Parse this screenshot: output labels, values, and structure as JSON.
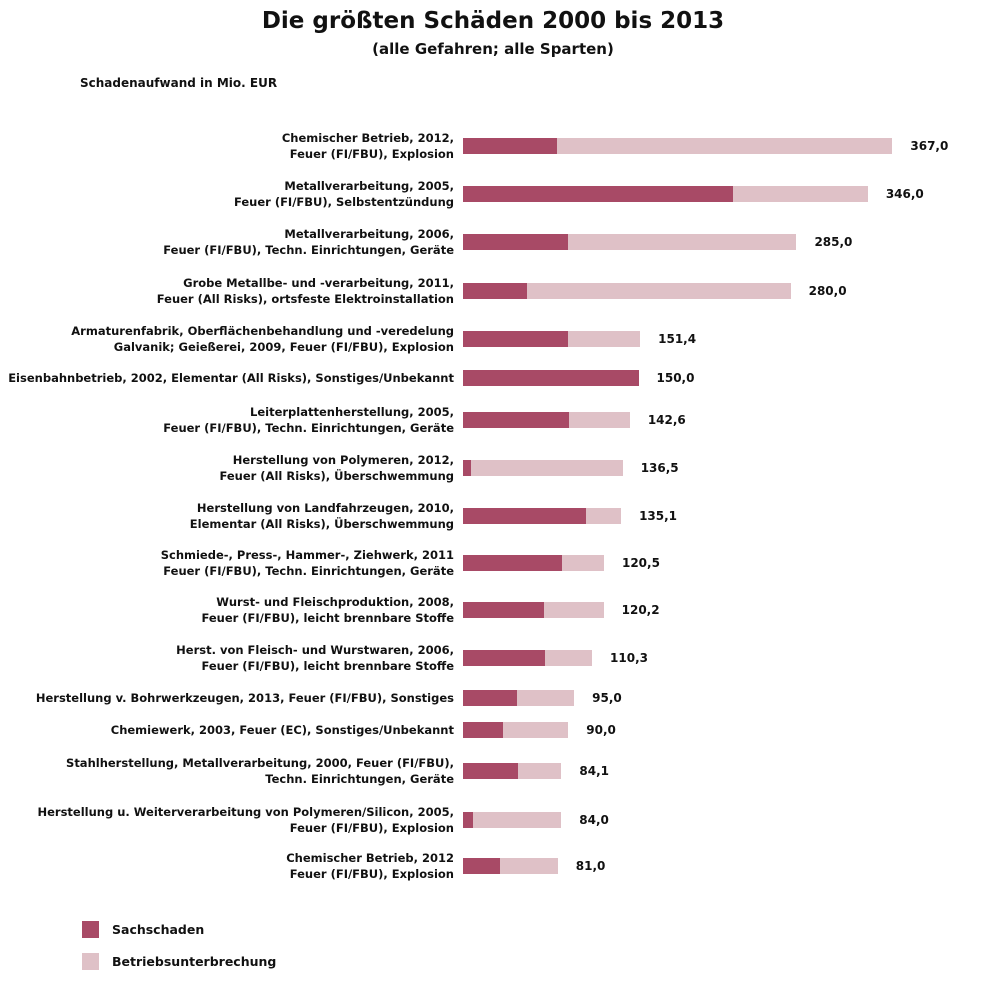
{
  "chart_data": {
    "type": "bar",
    "orientation": "horizontal",
    "stacked": true,
    "title": "Die größten Schäden 2000 bis 2013",
    "subtitle": "(alle Gefahren; alle Sparten)",
    "ylabel": "Schadenaufwand in Mio. EUR",
    "xlim": [
      0,
      370
    ],
    "grid": false,
    "legend_position": "bottom-left",
    "colors": {
      "Sachschaden": "#a84a66",
      "Betriebsunterbrechung": "#dfc1c7"
    },
    "categories": [
      [
        "Chemischer Betrieb, 2012,",
        "Feuer (FI/FBU), Explosion"
      ],
      [
        "Metallverarbeitung, 2005,",
        "Feuer (FI/FBU), Selbstentzündung"
      ],
      [
        "Metallverarbeitung, 2006,",
        "Feuer (FI/FBU), Techn. Einrichtungen, Geräte"
      ],
      [
        "Grobe Metallbe- und -verarbeitung, 2011,",
        "Feuer (All Risks), ortsfeste Elektroinstallation"
      ],
      [
        "Armaturenfabrik, Oberflächenbehandlung und -veredelung",
        "Galvanik; Geießerei, 2009, Feuer (FI/FBU), Explosion"
      ],
      [
        "Eisenbahnbetrieb, 2002, Elementar (All  Risks), Sonstiges/Unbekannt"
      ],
      [
        "Leiterplattenherstellung, 2005,",
        "Feuer (FI/FBU), Techn. Einrichtungen, Geräte"
      ],
      [
        "Herstellung von Polymeren, 2012,",
        "Feuer (All Risks), Überschwemmung"
      ],
      [
        "Herstellung von Landfahrzeugen, 2010,",
        "Elementar (All Risks), Überschwemmung"
      ],
      [
        "Schmiede-, Press-, Hammer-, Ziehwerk, 2011",
        "Feuer (FI/FBU), Techn. Einrichtungen, Geräte"
      ],
      [
        "Wurst- und Fleischproduktion, 2008,",
        "Feuer (FI/FBU), leicht brennbare Stoffe"
      ],
      [
        "Herst. von Fleisch- und Wurstwaren, 2006,",
        "Feuer (FI/FBU), leicht brennbare Stoffe"
      ],
      [
        "Herstellung v. Bohrwerkzeugen, 2013, Feuer (FI/FBU), Sonstiges"
      ],
      [
        "Chemiewerk, 2003, Feuer (EC), Sonstiges/Unbekannt"
      ],
      [
        "Stahlherstellung, Metallverarbeitung, 2000, Feuer (FI/FBU),",
        "Techn. Einrichtungen, Geräte"
      ],
      [
        "Herstellung u. Weiterverarbeitung von Polymeren/Silicon, 2005,",
        "Feuer (FI/FBU), Explosion"
      ],
      [
        "Chemischer Betrieb, 2012",
        "Feuer (FI/FBU), Explosion"
      ]
    ],
    "totals": [
      367.0,
      346.0,
      285.0,
      280.0,
      151.4,
      150.0,
      142.6,
      136.5,
      135.1,
      120.5,
      120.2,
      110.3,
      95.0,
      90.0,
      84.1,
      84.0,
      81.0
    ],
    "total_labels": [
      "367,0",
      "346,0",
      "285,0",
      "280,0",
      "151,4",
      "150,0",
      "142,6",
      "136,5",
      "135,1",
      "120,5",
      "120,2",
      "110,3",
      "95,0",
      "90,0",
      "84,1",
      "84,0",
      "81,0"
    ],
    "series": [
      {
        "name": "Sachschaden",
        "values": [
          80,
          231,
          90,
          55,
          90,
          150,
          91,
          7,
          105,
          85,
          69,
          70,
          46,
          34,
          47,
          8.5,
          32
        ]
      },
      {
        "name": "Betriebsunterbrechung",
        "values": [
          287,
          115,
          195,
          225,
          61.4,
          0,
          51.6,
          129.5,
          30.1,
          35.5,
          51.2,
          40.3,
          49,
          56,
          37.1,
          75.5,
          49
        ]
      }
    ]
  }
}
